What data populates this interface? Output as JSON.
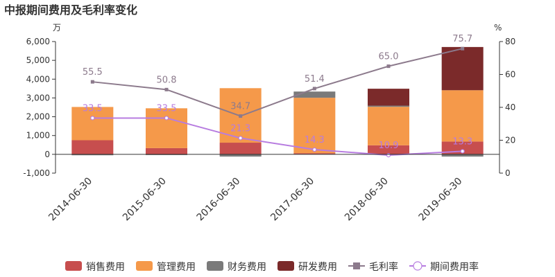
{
  "chart_data": {
    "type": "bar",
    "title": "中报期间费用及毛利率变化",
    "y_left_unit": "万",
    "y_right_unit": "%",
    "categories": [
      "2014-06-30",
      "2015-06-30",
      "2016-06-30",
      "2017-06-30",
      "2018-06-30",
      "2019-06-30"
    ],
    "ylim_left": [
      -1000,
      6000
    ],
    "yticks_left": [
      -1000,
      0,
      1000,
      2000,
      3000,
      4000,
      5000,
      6000
    ],
    "ytick_labels_left": [
      "-1,000",
      "0",
      "1,000",
      "2,000",
      "3,000",
      "4,000",
      "5,000",
      "6,000"
    ],
    "ylim_right": [
      0,
      80
    ],
    "yticks_right": [
      0,
      20,
      40,
      60,
      80
    ],
    "ytick_labels_right": [
      "0",
      "20",
      "40",
      "60",
      "80"
    ],
    "stacked": true,
    "series": [
      {
        "name": "销售费用",
        "kind": "bar",
        "axis": "left",
        "color": "#c74e4e",
        "values": [
          750,
          330,
          620,
          60,
          480,
          680
        ]
      },
      {
        "name": "管理费用",
        "kind": "bar",
        "axis": "left",
        "color": "#f5994a",
        "values": [
          1770,
          2120,
          2900,
          2950,
          2050,
          2730
        ]
      },
      {
        "name": "财务费用",
        "kind": "bar",
        "axis": "left",
        "color": "#7a7a7a",
        "values": [
          -50,
          -40,
          -120,
          330,
          60,
          -120
        ]
      },
      {
        "name": "研发费用",
        "kind": "bar",
        "axis": "left",
        "color": "#7b2a2a",
        "values": [
          0,
          0,
          0,
          0,
          900,
          2300
        ]
      },
      {
        "name": "毛利率",
        "kind": "line",
        "axis": "right",
        "color": "#8c7a8c",
        "marker": "square",
        "values": [
          55.5,
          50.8,
          34.7,
          51.4,
          65.0,
          75.7
        ],
        "labels": [
          "55.5",
          "50.8",
          "34.7",
          "51.4",
          "65.0",
          "75.7"
        ]
      },
      {
        "name": "期间费用率",
        "kind": "line",
        "axis": "right",
        "color": "#b77ce0",
        "marker": "circle",
        "values": [
          33.5,
          33.5,
          21.3,
          14.3,
          10.9,
          13.3
        ],
        "labels": [
          "33.5",
          "33.5",
          "21.3",
          "14.3",
          "10.9",
          "13.3"
        ]
      }
    ],
    "legend_position": "bottom"
  }
}
